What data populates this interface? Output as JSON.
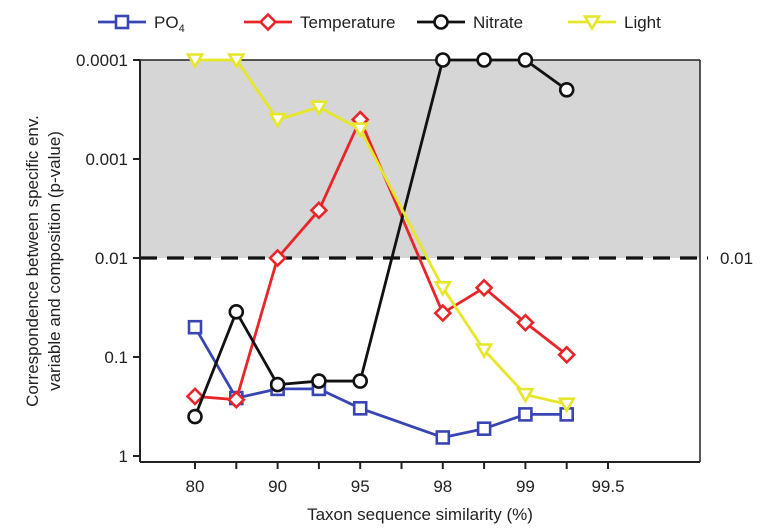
{
  "chart_data": {
    "type": "line",
    "xlabel": "Taxon sequence similarity (%)",
    "ylabel_lines": [
      "Correspondence between specific env.",
      "variable and composition (p-value)"
    ],
    "x_categories": [
      "80",
      "",
      "90",
      "",
      "95",
      "",
      "98",
      "",
      "99",
      "",
      "99.5"
    ],
    "x_ticks_shown": [
      "80",
      "90",
      "95",
      "98",
      "99",
      "99.5"
    ],
    "y_scale": "log",
    "y_inverted": true,
    "y_ticks": [
      {
        "value": 0.0001,
        "label": "0.0001"
      },
      {
        "value": 0.001,
        "label": "0.001"
      },
      {
        "value": 0.01,
        "label": "0.01"
      },
      {
        "value": 0.1,
        "label": "0.1"
      },
      {
        "value": 1,
        "label": "1"
      }
    ],
    "ylim": [
      1.15,
      0.0001
    ],
    "threshold": {
      "value": 0.01,
      "label": "0.01",
      "style": "dashed"
    },
    "significance_region": {
      "from": 0.0001,
      "to": 0.01,
      "color": "#d6d6d6"
    },
    "x_positions": [
      0,
      1,
      2,
      3,
      4,
      6,
      7,
      8,
      9
    ],
    "series": [
      {
        "name": "PO4",
        "name_main": "PO",
        "name_sub": "4",
        "color": "#3a45b4",
        "marker": "square",
        "values": [
          0.05,
          0.26,
          0.21,
          0.21,
          0.33,
          0.65,
          0.53,
          0.38,
          0.38
        ]
      },
      {
        "name": "Temperature",
        "color": "#e8262a",
        "marker": "diamond",
        "values": [
          0.25,
          0.27,
          0.01,
          0.0033,
          0.0004,
          0.036,
          0.02,
          0.045,
          0.095
        ]
      },
      {
        "name": "Nitrate",
        "color": "#111111",
        "marker": "circle",
        "values": [
          0.4,
          0.035,
          0.19,
          0.175,
          0.175,
          0.0001,
          0.0001,
          0.0001,
          0.0002
        ]
      },
      {
        "name": "Light",
        "color": "#e6e62a",
        "marker": "triangle-down",
        "values": [
          0.0001,
          0.0001,
          0.0004,
          0.0003,
          0.0005,
          0.02,
          0.085,
          0.24,
          0.3
        ]
      }
    ],
    "legend": {
      "position": "top",
      "orientation": "horizontal"
    },
    "grid": false
  }
}
